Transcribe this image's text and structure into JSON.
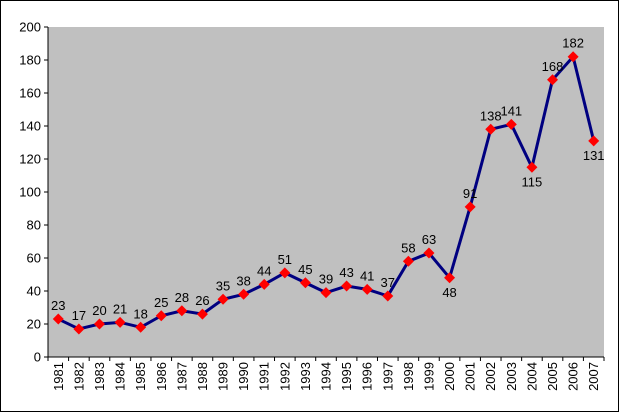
{
  "chart_data": {
    "type": "line",
    "title": "",
    "xlabel": "",
    "ylabel": "",
    "ylim": [
      0,
      200
    ],
    "yticks": [
      0,
      20,
      40,
      60,
      80,
      100,
      120,
      140,
      160,
      180,
      200
    ],
    "grid": false,
    "legend": "none",
    "plot_background": "#C0C0C0",
    "line_color": "#000080",
    "marker_color": "#FF0000",
    "marker": "diamond",
    "categories": [
      "1981",
      "1982",
      "1983",
      "1984",
      "1985",
      "1986",
      "1987",
      "1988",
      "1989",
      "1990",
      "1991",
      "1992",
      "1993",
      "1994",
      "1995",
      "1996",
      "1997",
      "1998",
      "1999",
      "2000",
      "2001",
      "2002",
      "2003",
      "2004",
      "2005",
      "2006",
      "2007"
    ],
    "series": [
      {
        "values": [
          23,
          17,
          20,
          21,
          18,
          25,
          28,
          26,
          35,
          38,
          44,
          51,
          45,
          39,
          43,
          41,
          37,
          58,
          63,
          48,
          91,
          138,
          141,
          115,
          168,
          182,
          131
        ],
        "data_labels": [
          "23",
          "17",
          "20",
          "21",
          "18",
          "25",
          "28",
          "26",
          "35",
          "38",
          "44",
          "51",
          "45",
          "39",
          "43",
          "41",
          "37",
          "58",
          "63",
          "48",
          "91",
          "138",
          "141",
          "115",
          "168",
          "182",
          "131"
        ],
        "label_below": [
          false,
          false,
          false,
          false,
          false,
          false,
          false,
          false,
          false,
          false,
          false,
          false,
          false,
          false,
          false,
          false,
          false,
          false,
          false,
          true,
          false,
          false,
          false,
          true,
          false,
          false,
          true
        ]
      }
    ]
  }
}
